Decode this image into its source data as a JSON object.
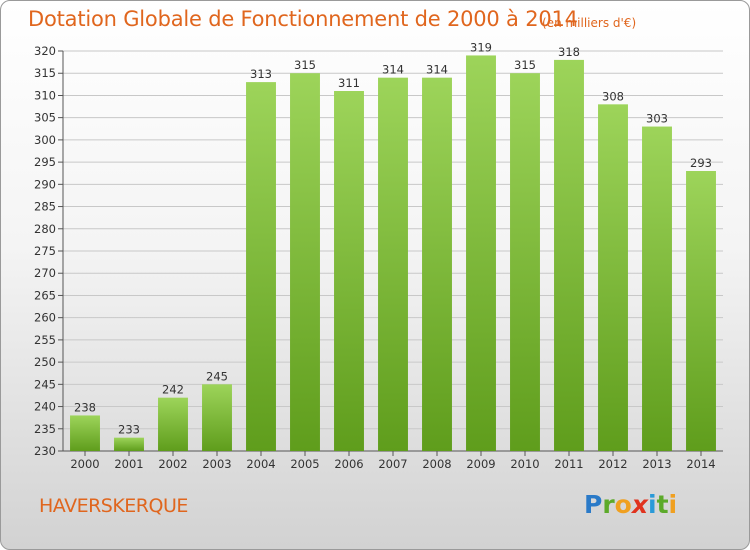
{
  "header": {
    "title": "Dotation Globale de Fonctionnement de 2000 à 2014",
    "unit": "(en milliers d'€)"
  },
  "footer": {
    "commune": "HAVERSKERQUE",
    "logo": [
      "P",
      "r",
      "o",
      "x",
      "i",
      "t",
      "i"
    ]
  },
  "chart_data": {
    "type": "bar",
    "title": "Dotation Globale de Fonctionnement de 2000 à 2014",
    "subtitle": "(en milliers d'€)",
    "xlabel": "",
    "ylabel": "",
    "categories": [
      "2000",
      "2001",
      "2002",
      "2003",
      "2004",
      "2005",
      "2006",
      "2007",
      "2008",
      "2009",
      "2010",
      "2011",
      "2012",
      "2013",
      "2014"
    ],
    "values": [
      238,
      233,
      242,
      245,
      313,
      315,
      311,
      314,
      314,
      319,
      315,
      318,
      308,
      303,
      293
    ],
    "ylim": [
      230,
      320
    ],
    "yticks": [
      230,
      235,
      240,
      245,
      250,
      255,
      260,
      265,
      270,
      275,
      280,
      285,
      290,
      295,
      300,
      305,
      310,
      315,
      320
    ],
    "grid": true,
    "legend": "none",
    "colors": {
      "bar_light": "#9dd45a",
      "bar_dark": "#5f9d1c",
      "grid": "#c8c8c8"
    }
  }
}
